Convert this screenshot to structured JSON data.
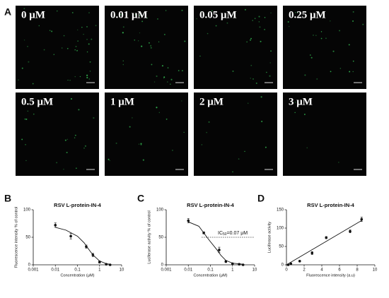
{
  "panel_a": {
    "label": "A",
    "images": [
      "0 μM",
      "0.01 μM",
      "0.05 μM",
      "0.25 μM",
      "0.5 μM",
      "1 μM",
      "2 μM",
      "3 μM"
    ]
  },
  "chart_data": [
    {
      "type": "dose-response",
      "panel_label": "B",
      "title": "RSV L-protein-IN-4",
      "x_label": "Concentration (μM)",
      "y_label": "Fluorescence intensity % of control",
      "xscale": "log",
      "xlim": [
        0.001,
        10
      ],
      "xticks": [
        0.001,
        0.01,
        0.1,
        1,
        10
      ],
      "ylim": [
        0,
        100
      ],
      "yticks": [
        0,
        50,
        100
      ],
      "color": "#111111",
      "points": {
        "x": [
          0.01,
          0.05,
          0.25,
          0.5,
          1,
          2,
          3
        ],
        "values": [
          72,
          52,
          33,
          18,
          5,
          1,
          0
        ],
        "errors": [
          4,
          5,
          3,
          3,
          2,
          1,
          1
        ]
      },
      "curve": {
        "x": [
          0.01,
          0.03,
          0.1,
          0.2,
          0.3,
          0.5,
          1,
          2,
          3
        ],
        "values": [
          68,
          63,
          52,
          40,
          30,
          18,
          7,
          2,
          1
        ]
      }
    },
    {
      "type": "dose-response",
      "panel_label": "C",
      "title": "RSV L-protein-IN-4",
      "x_label": "Concentration (μM)",
      "y_label": "Luciferase activity % of control",
      "xscale": "log",
      "xlim": [
        0.001,
        10
      ],
      "xticks": [
        0.001,
        0.01,
        0.1,
        1,
        10
      ],
      "ylim": [
        0,
        100
      ],
      "yticks": [
        0,
        50,
        100
      ],
      "color": "#111111",
      "points": {
        "x": [
          0.01,
          0.05,
          0.25,
          0.5,
          1,
          2,
          3
        ],
        "values": [
          80,
          58,
          27,
          6,
          2,
          1,
          0
        ],
        "errors": [
          4,
          2,
          5,
          2,
          1,
          1,
          1
        ]
      },
      "curve": {
        "x": [
          0.01,
          0.03,
          0.07,
          0.1,
          0.2,
          0.3,
          0.5,
          1,
          3
        ],
        "values": [
          78,
          70,
          50,
          42,
          27,
          17,
          8,
          3,
          1
        ]
      },
      "reference_line": {
        "value": 50,
        "from": 0.04
      },
      "annotation": {
        "prefix": "IC",
        "sub": "50",
        "text": "=0.07 μM"
      }
    },
    {
      "type": "scatter",
      "panel_label": "D",
      "title": "RSV L-protein-IN-4",
      "x_label": "Fluorescence intensity (a.u)",
      "y_label": "Luciferase activity",
      "xlim": [
        0,
        10
      ],
      "xticks": [
        0,
        2,
        4,
        6,
        8,
        10
      ],
      "ylim": [
        0,
        150
      ],
      "yticks": [
        0,
        50,
        100,
        150
      ],
      "color": "#111111",
      "points": {
        "x": [
          0.2,
          0.5,
          1.5,
          2.9,
          4.5,
          7.2,
          8.5
        ],
        "values": [
          0,
          3,
          10,
          32,
          74,
          91,
          124
        ],
        "errors": [
          1,
          1,
          2,
          4,
          3,
          4,
          6
        ]
      },
      "curve": {
        "x": [
          0,
          8.6
        ],
        "values": [
          0,
          122
        ]
      }
    }
  ]
}
